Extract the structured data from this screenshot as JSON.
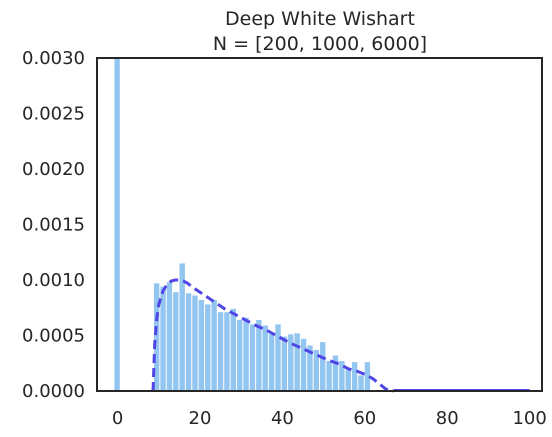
{
  "chart_data": {
    "type": "bar",
    "title": "Deep White Wishart",
    "subtitle": "N = [200, 1000, 6000]",
    "xlabel": "",
    "ylabel": "",
    "xlim": [
      -5,
      103
    ],
    "ylim": [
      0,
      0.003
    ],
    "grid": false,
    "x_ticks": [
      0,
      20,
      40,
      60,
      80,
      100
    ],
    "y_ticks": [
      0.0,
      0.0005,
      0.001,
      0.0015,
      0.002,
      0.0025,
      0.003
    ],
    "x_tick_labels": [
      "0",
      "20",
      "40",
      "60",
      "80",
      "100"
    ],
    "y_tick_labels": [
      "0.0000",
      "0.0005",
      "0.0010",
      "0.0015",
      "0.0020",
      "0.0025",
      "0.0030"
    ],
    "bin_width": 1.55,
    "bins": [
      {
        "x": 0.0,
        "y": 0.003
      },
      {
        "x": 9.6,
        "y": 0.00097
      },
      {
        "x": 11.15,
        "y": 0.00094
      },
      {
        "x": 12.7,
        "y": 0.00098
      },
      {
        "x": 14.25,
        "y": 0.00089
      },
      {
        "x": 15.8,
        "y": 0.00115
      },
      {
        "x": 17.35,
        "y": 0.00088
      },
      {
        "x": 18.9,
        "y": 0.00086
      },
      {
        "x": 20.45,
        "y": 0.00082
      },
      {
        "x": 22.0,
        "y": 0.00078
      },
      {
        "x": 23.55,
        "y": 0.00082
      },
      {
        "x": 25.1,
        "y": 0.00071
      },
      {
        "x": 26.65,
        "y": 0.00071
      },
      {
        "x": 28.2,
        "y": 0.00074
      },
      {
        "x": 29.75,
        "y": 0.00064
      },
      {
        "x": 31.3,
        "y": 0.00066
      },
      {
        "x": 32.85,
        "y": 0.0006
      },
      {
        "x": 34.4,
        "y": 0.00064
      },
      {
        "x": 35.95,
        "y": 0.00059
      },
      {
        "x": 37.5,
        "y": 0.00051
      },
      {
        "x": 39.05,
        "y": 0.0006
      },
      {
        "x": 40.6,
        "y": 0.00049
      },
      {
        "x": 42.15,
        "y": 0.00051
      },
      {
        "x": 43.7,
        "y": 0.00052
      },
      {
        "x": 45.25,
        "y": 0.00047
      },
      {
        "x": 46.8,
        "y": 0.00041
      },
      {
        "x": 48.35,
        "y": 0.00037
      },
      {
        "x": 49.9,
        "y": 0.00044
      },
      {
        "x": 51.45,
        "y": 0.00027
      },
      {
        "x": 53.0,
        "y": 0.00032
      },
      {
        "x": 54.55,
        "y": 0.00027
      },
      {
        "x": 56.1,
        "y": 0.00019
      },
      {
        "x": 57.65,
        "y": 0.00026
      },
      {
        "x": 59.2,
        "y": 0.00014
      },
      {
        "x": 60.75,
        "y": 0.00026
      }
    ],
    "density_curve": {
      "style": "dashed",
      "x": [
        8.6,
        9.0,
        9.5,
        10.0,
        11.0,
        12.0,
        13.0,
        14.0,
        15.0,
        16.0,
        17.0,
        18.0,
        20.0,
        22.0,
        24.0,
        26.0,
        28.0,
        30.0,
        33.0,
        36.0,
        39.0,
        42.0,
        45.0,
        48.0,
        51.0,
        54.0,
        56.0,
        58.0,
        60.0,
        61.0,
        62.0,
        63.0,
        64.0,
        65.0,
        66.0,
        67.0
      ],
      "y": [
        0.0,
        0.00042,
        0.00065,
        0.00078,
        0.0009,
        0.00096,
        0.00099,
        0.001,
        0.001,
        0.00099,
        0.00097,
        0.00094,
        0.00089,
        0.00084,
        0.00079,
        0.00074,
        0.0007,
        0.00066,
        0.0006,
        0.00055,
        0.00049,
        0.00043,
        0.00038,
        0.00033,
        0.00028,
        0.00024,
        0.0002,
        0.00018,
        0.00015,
        0.00013,
        0.00011,
        8e-05,
        5e-05,
        2e-05,
        5e-06,
        0.0
      ]
    },
    "baseline": {
      "x": [
        67.0,
        100.0
      ],
      "y": 0.0
    },
    "colors": {
      "bars": "#92c5f0",
      "curve": "#4f46e5",
      "axes": "#262626",
      "text": "#262626"
    }
  }
}
